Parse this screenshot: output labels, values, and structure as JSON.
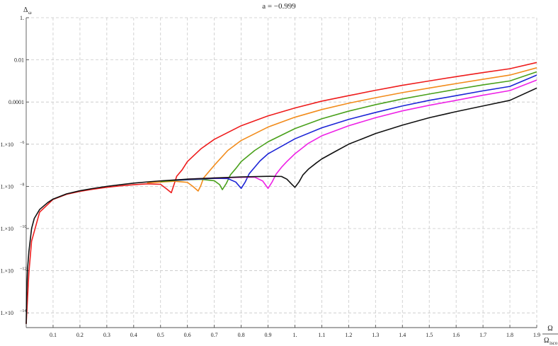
{
  "chart_data": {
    "type": "line",
    "title": "a = −0.999",
    "xlabel": "Ω",
    "xlabel_denominator": "Ω",
    "xlabel_denominator_sub": "isco",
    "ylabel": "Δ",
    "ylabel_sub": "ω",
    "x_scale": "linear",
    "y_scale": "log",
    "xlim": [
      0.0,
      1.9
    ],
    "ylim": [
      2e-15,
      1.0
    ],
    "grid": true,
    "legend": "none",
    "x_ticks": [
      {
        "v": 0.1,
        "label": "0.1"
      },
      {
        "v": 0.2,
        "label": "0.2"
      },
      {
        "v": 0.3,
        "label": "0.3"
      },
      {
        "v": 0.4,
        "label": "0.4"
      },
      {
        "v": 0.5,
        "label": "0.5"
      },
      {
        "v": 0.6,
        "label": "0.6"
      },
      {
        "v": 0.7,
        "label": "0.7"
      },
      {
        "v": 0.8,
        "label": "0.8"
      },
      {
        "v": 0.9,
        "label": "0.9"
      },
      {
        "v": 1.0,
        "label": "1."
      },
      {
        "v": 1.1,
        "label": "1.1"
      },
      {
        "v": 1.2,
        "label": "1.2"
      },
      {
        "v": 1.3,
        "label": "1.3"
      },
      {
        "v": 1.4,
        "label": "1.4"
      },
      {
        "v": 1.5,
        "label": "1.5"
      },
      {
        "v": 1.6,
        "label": "1.6"
      },
      {
        "v": 1.7,
        "label": "1.7"
      },
      {
        "v": 1.8,
        "label": "1.8"
      },
      {
        "v": 1.9,
        "label": "1.9"
      }
    ],
    "y_ticks": [
      {
        "v": 1,
        "label": "1.",
        "kind": "plain"
      },
      {
        "v": 0.01,
        "label": "0.01",
        "kind": "plain"
      },
      {
        "v": 0.0001,
        "label": "0.0001",
        "kind": "plain"
      },
      {
        "v": 1e-06,
        "label": "1.×10",
        "exp": "−6",
        "kind": "sci"
      },
      {
        "v": 1e-08,
        "label": "1.×10",
        "exp": "−8",
        "kind": "sci"
      },
      {
        "v": 1e-10,
        "label": "1.×10",
        "exp": "−10",
        "kind": "sci"
      },
      {
        "v": 1e-12,
        "label": "1.×10",
        "exp": "−12",
        "kind": "sci"
      },
      {
        "v": 1e-14,
        "label": "1.×10",
        "exp": "−14",
        "kind": "sci"
      }
    ],
    "series": [
      {
        "color": "#ee1c1c",
        "points": [
          [
            0.0,
            3e-15
          ],
          [
            0.01,
            8e-13
          ],
          [
            0.02,
            2.5e-11
          ],
          [
            0.05,
            6e-10
          ],
          [
            0.1,
            2.4e-09
          ],
          [
            0.15,
            4.2e-09
          ],
          [
            0.2,
            5.8e-09
          ],
          [
            0.25,
            7.4e-09
          ],
          [
            0.3,
            9e-09
          ],
          [
            0.35,
            1.05e-08
          ],
          [
            0.4,
            1.2e-08
          ],
          [
            0.45,
            1.32e-08
          ],
          [
            0.5,
            1.25e-08
          ],
          [
            0.52,
            8e-09
          ],
          [
            0.54,
            5e-09
          ],
          [
            0.55,
            1.2e-08
          ],
          [
            0.56,
            3e-08
          ],
          [
            0.58,
            6e-08
          ],
          [
            0.6,
            1.5e-07
          ],
          [
            0.65,
            6e-07
          ],
          [
            0.7,
            1.7e-06
          ],
          [
            0.8,
            7.5e-06
          ],
          [
            0.9,
            2.2e-05
          ],
          [
            1.0,
            5.2e-05
          ],
          [
            1.1,
            0.00011
          ],
          [
            1.2,
            0.0002
          ],
          [
            1.3,
            0.00036
          ],
          [
            1.4,
            0.00062
          ],
          [
            1.5,
            0.001
          ],
          [
            1.6,
            0.0016
          ],
          [
            1.7,
            0.0025
          ],
          [
            1.8,
            0.0038
          ],
          [
            1.9,
            0.0075
          ]
        ]
      },
      {
        "color": "#f28c1c",
        "points": [
          [
            0.45,
            1.45e-08
          ],
          [
            0.5,
            1.6e-08
          ],
          [
            0.55,
            1.75e-08
          ],
          [
            0.6,
            1.55e-08
          ],
          [
            0.62,
            1e-08
          ],
          [
            0.64,
            6e-09
          ],
          [
            0.65,
            1.1e-08
          ],
          [
            0.66,
            2.5e-08
          ],
          [
            0.68,
            5e-08
          ],
          [
            0.7,
            1e-07
          ],
          [
            0.75,
            5e-07
          ],
          [
            0.8,
            1.5e-06
          ],
          [
            0.9,
            6.5e-06
          ],
          [
            1.0,
            1.9e-05
          ],
          [
            1.1,
            4.4e-05
          ],
          [
            1.2,
            8.8e-05
          ],
          [
            1.3,
            0.00016
          ],
          [
            1.4,
            0.00028
          ],
          [
            1.5,
            0.00046
          ],
          [
            1.6,
            0.00075
          ],
          [
            1.7,
            0.0012
          ],
          [
            1.8,
            0.0019
          ],
          [
            1.9,
            0.0042
          ]
        ]
      },
      {
        "color": "#4aa11c",
        "points": [
          [
            0.5,
            1.7e-08
          ],
          [
            0.55,
            1.9e-08
          ],
          [
            0.6,
            2.05e-08
          ],
          [
            0.65,
            2.15e-08
          ],
          [
            0.7,
            1.85e-08
          ],
          [
            0.72,
            1.2e-08
          ],
          [
            0.73,
            7e-09
          ],
          [
            0.745,
            1.4e-08
          ],
          [
            0.76,
            3.5e-08
          ],
          [
            0.78,
            7e-08
          ],
          [
            0.8,
            1.5e-07
          ],
          [
            0.85,
            5e-07
          ],
          [
            0.9,
            1.3e-06
          ],
          [
            1.0,
            5.5e-06
          ],
          [
            1.1,
            1.6e-05
          ],
          [
            1.2,
            3.7e-05
          ],
          [
            1.3,
            7.5e-05
          ],
          [
            1.4,
            0.00014
          ],
          [
            1.5,
            0.00024
          ],
          [
            1.6,
            0.0004
          ],
          [
            1.7,
            0.00065
          ],
          [
            1.8,
            0.001
          ],
          [
            1.9,
            0.0027
          ]
        ]
      },
      {
        "color": "#1c24d6",
        "points": [
          [
            0.55,
            1.95e-08
          ],
          [
            0.6,
            2.1e-08
          ],
          [
            0.65,
            2.25e-08
          ],
          [
            0.7,
            2.4e-08
          ],
          [
            0.75,
            2.35e-08
          ],
          [
            0.78,
            1.6e-08
          ],
          [
            0.8,
            8e-09
          ],
          [
            0.815,
            1.6e-08
          ],
          [
            0.83,
            4e-08
          ],
          [
            0.85,
            8e-08
          ],
          [
            0.87,
            1.6e-07
          ],
          [
            0.9,
            3.5e-07
          ],
          [
            1.0,
            1.8e-06
          ],
          [
            1.1,
            6e-06
          ],
          [
            1.2,
            1.5e-05
          ],
          [
            1.3,
            3.2e-05
          ],
          [
            1.4,
            6.5e-05
          ],
          [
            1.5,
            0.00012
          ],
          [
            1.6,
            0.0002
          ],
          [
            1.7,
            0.00034
          ],
          [
            1.8,
            0.00055
          ],
          [
            1.9,
            0.0019
          ]
        ]
      },
      {
        "color": "#ee22e6",
        "points": [
          [
            0.6,
            2.2e-08
          ],
          [
            0.7,
            2.5e-08
          ],
          [
            0.8,
            2.7e-08
          ],
          [
            0.85,
            2.75e-08
          ],
          [
            0.88,
            1.8e-08
          ],
          [
            0.9,
            8e-09
          ],
          [
            0.915,
            1.6e-08
          ],
          [
            0.93,
            3.8e-08
          ],
          [
            0.95,
            8e-08
          ],
          [
            0.97,
            1.5e-07
          ],
          [
            1.0,
            3.5e-07
          ],
          [
            1.05,
            1.1e-06
          ],
          [
            1.1,
            2.5e-06
          ],
          [
            1.2,
            7.5e-06
          ],
          [
            1.3,
            1.8e-05
          ],
          [
            1.4,
            3.8e-05
          ],
          [
            1.5,
            7e-05
          ],
          [
            1.6,
            0.00012
          ],
          [
            1.7,
            0.00021
          ],
          [
            1.8,
            0.00035
          ],
          [
            1.9,
            0.0011
          ]
        ]
      },
      {
        "color": "#111111",
        "points": [
          [
            0.0,
            3e-15
          ],
          [
            0.002,
            1e-13
          ],
          [
            0.005,
            1.2e-12
          ],
          [
            0.01,
            8e-12
          ],
          [
            0.02,
            1e-10
          ],
          [
            0.03,
            3e-10
          ],
          [
            0.05,
            8e-10
          ],
          [
            0.08,
            1.7e-09
          ],
          [
            0.1,
            2.5e-09
          ],
          [
            0.15,
            4.4e-09
          ],
          [
            0.2,
            6.2e-09
          ],
          [
            0.25,
            8e-09
          ],
          [
            0.3,
            1e-08
          ],
          [
            0.35,
            1.2e-08
          ],
          [
            0.4,
            1.42e-08
          ],
          [
            0.45,
            1.62e-08
          ],
          [
            0.5,
            1.82e-08
          ],
          [
            0.55,
            2e-08
          ],
          [
            0.6,
            2.2e-08
          ],
          [
            0.7,
            2.5e-08
          ],
          [
            0.8,
            2.8e-08
          ],
          [
            0.9,
            3e-08
          ],
          [
            0.95,
            2.95e-08
          ],
          [
            0.97,
            2.2e-08
          ],
          [
            0.99,
            1.2e-08
          ],
          [
            1.0,
            9e-09
          ],
          [
            1.015,
            1.6e-08
          ],
          [
            1.03,
            3.5e-08
          ],
          [
            1.05,
            6.5e-08
          ],
          [
            1.08,
            1.3e-07
          ],
          [
            1.1,
            2e-07
          ],
          [
            1.15,
            4.5e-07
          ],
          [
            1.2,
            1e-06
          ],
          [
            1.3,
            3.2e-06
          ],
          [
            1.4,
            8e-06
          ],
          [
            1.5,
            1.8e-05
          ],
          [
            1.6,
            3.5e-05
          ],
          [
            1.7,
            6.5e-05
          ],
          [
            1.8,
            0.00012
          ],
          [
            1.9,
            0.00046
          ]
        ]
      }
    ]
  }
}
